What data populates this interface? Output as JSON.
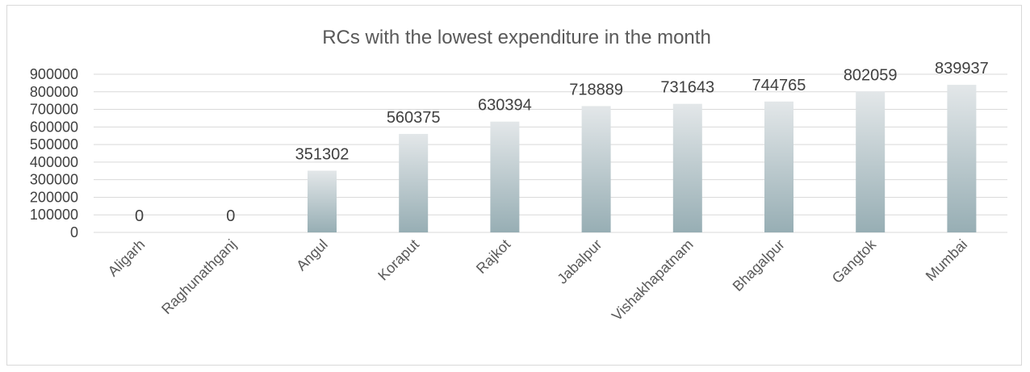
{
  "chart_data": {
    "type": "bar",
    "title": "RCs with the lowest expenditure in the month",
    "xlabel": "",
    "ylabel": "",
    "categories": [
      "Aligarh",
      "Raghunathganj",
      "Angul",
      "Koraput",
      "Rajkot",
      "Jabalpur",
      "Vishakhapatnam",
      "Bhagalpur",
      "Gangtok",
      "Mumbai"
    ],
    "values": [
      0,
      0,
      351302,
      560375,
      630394,
      718889,
      731643,
      744765,
      802059,
      839937
    ],
    "data_labels": [
      "0",
      "0",
      "351302",
      "560375",
      "630394",
      "718889",
      "731643",
      "744765",
      "802059",
      "839937"
    ],
    "ylim": [
      0,
      900000
    ],
    "yticks": [
      0,
      100000,
      200000,
      300000,
      400000,
      500000,
      600000,
      700000,
      800000,
      900000
    ],
    "ytick_labels": [
      "0",
      "100000",
      "200000",
      "300000",
      "400000",
      "500000",
      "600000",
      "700000",
      "800000",
      "900000"
    ],
    "grid": true,
    "legend": "none",
    "colors": {
      "bar_top": "#e3e7e9",
      "bar_bottom": "#97aeb4",
      "gridline": "#d9d9d9",
      "text": "#404040"
    }
  }
}
